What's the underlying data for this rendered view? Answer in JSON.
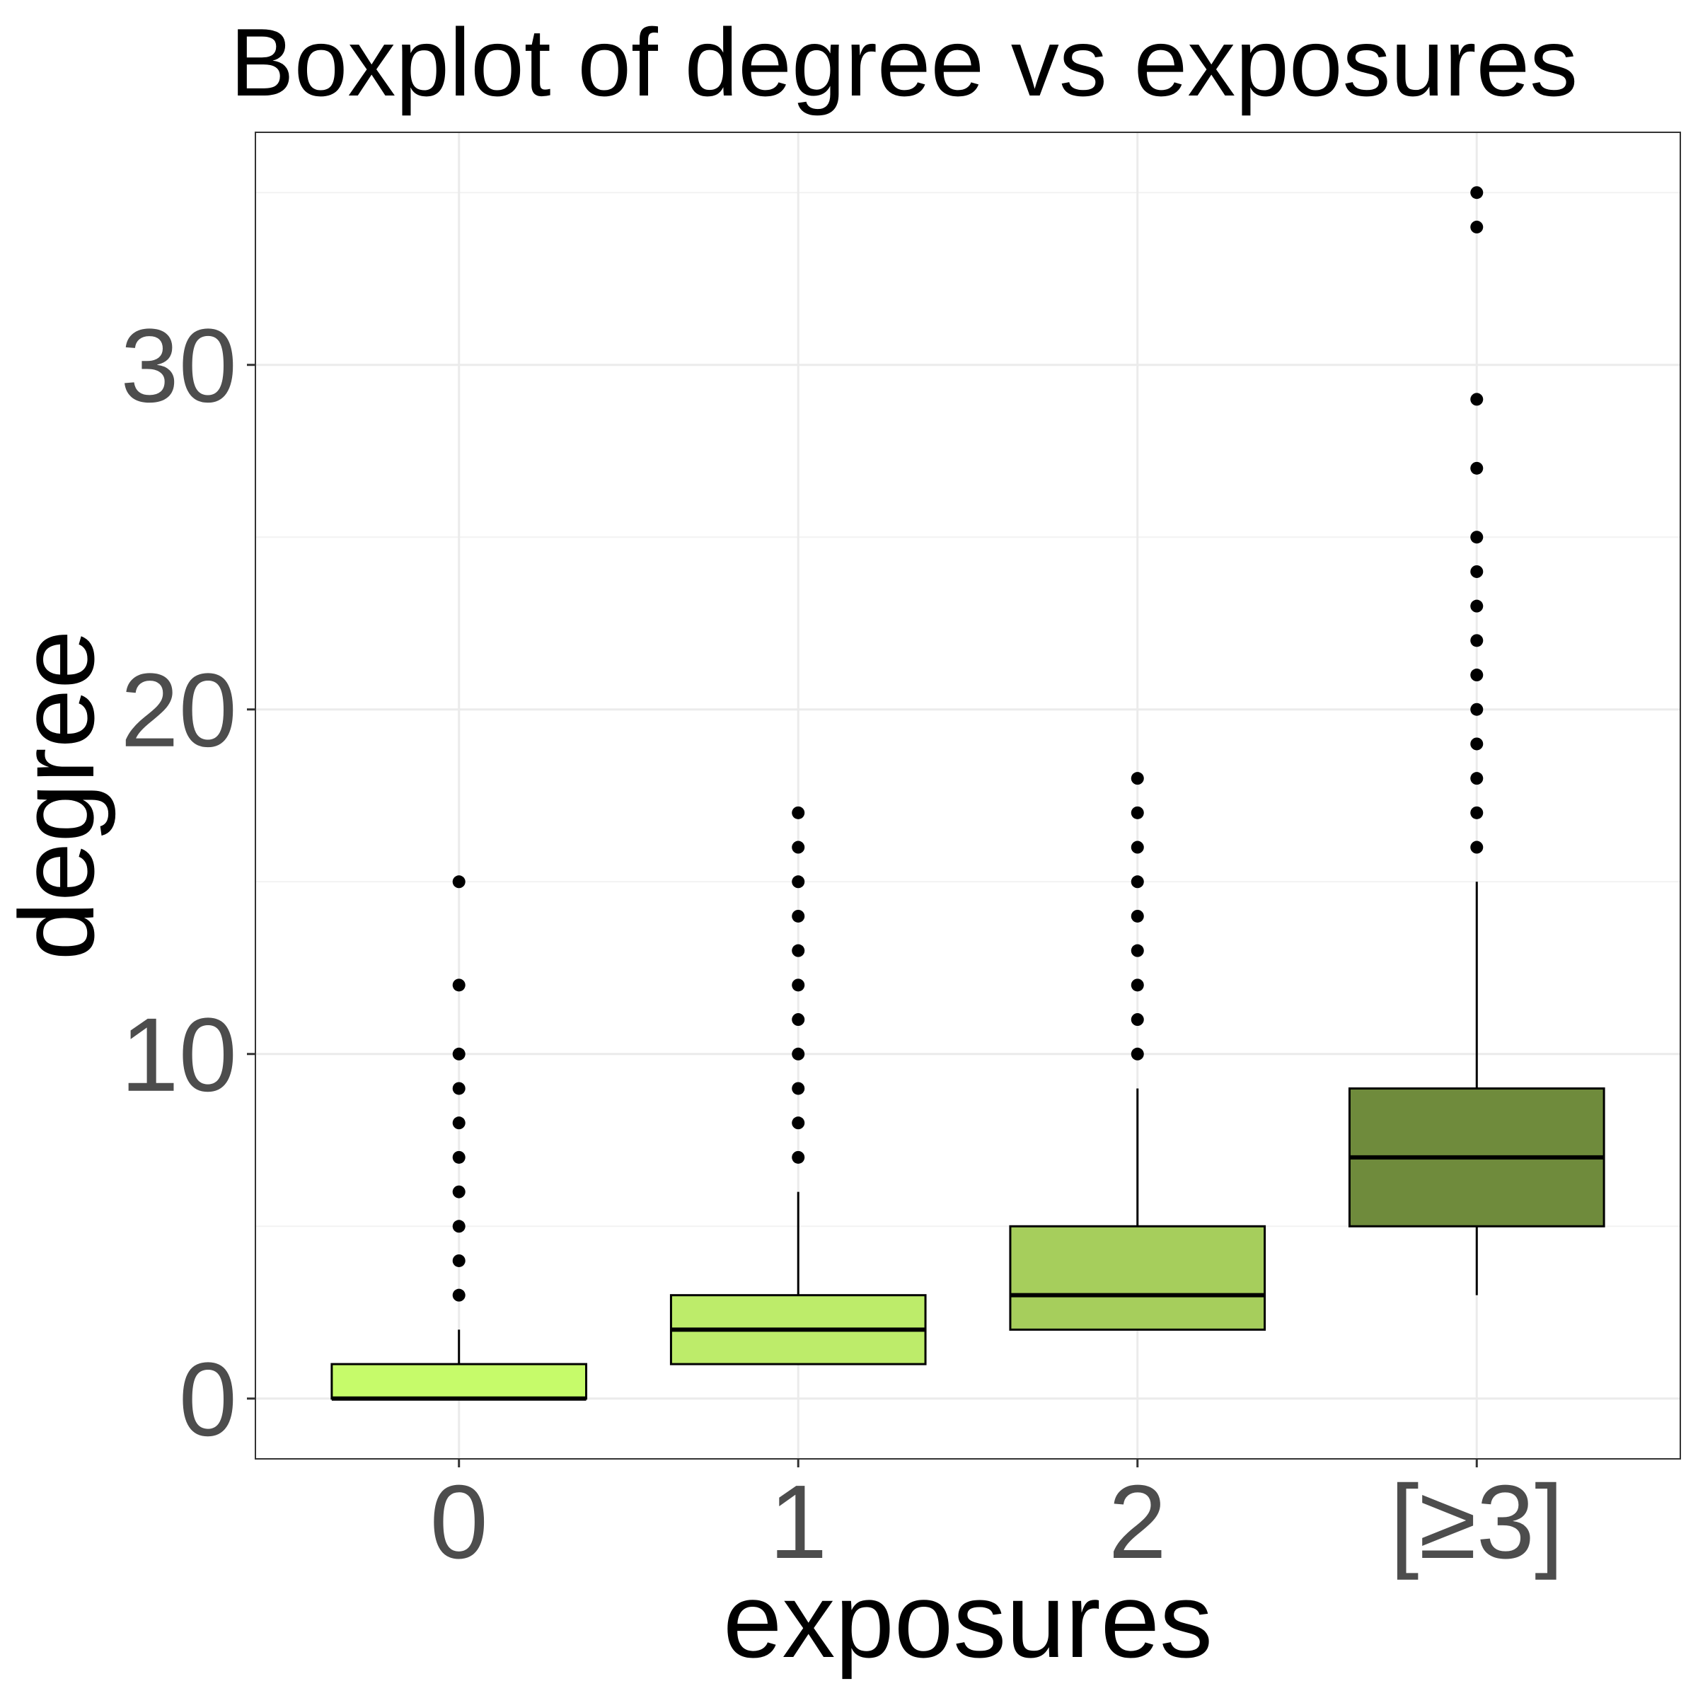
{
  "chart_data": {
    "type": "boxplot",
    "title": "Boxplot of degree vs exposures",
    "x_label": "exposures",
    "y_label": "degree",
    "categories": [
      "0",
      "1",
      "2",
      "[≥3]"
    ],
    "boxes": [
      {
        "color": "#c6fb6a",
        "whisker_low": 0,
        "q1": 0,
        "median": 0,
        "q3": 1,
        "whisker_high": 2,
        "outliers": [
          3,
          4,
          5,
          6,
          7,
          8,
          9,
          10,
          12,
          15
        ]
      },
      {
        "color": "#bdec6a",
        "whisker_low": 1,
        "q1": 1,
        "median": 2,
        "q3": 3,
        "whisker_high": 6,
        "outliers": [
          7,
          8,
          9,
          10,
          11,
          12,
          13,
          14,
          15,
          16,
          17
        ]
      },
      {
        "color": "#a6ce5c",
        "whisker_low": 2,
        "q1": 2,
        "median": 3,
        "q3": 5,
        "whisker_high": 9,
        "outliers": [
          10,
          11,
          12,
          13,
          14,
          15,
          16,
          17,
          18
        ]
      },
      {
        "color": "#6f8b3c",
        "whisker_low": 3,
        "q1": 5,
        "median": 7,
        "q3": 9,
        "whisker_high": 15,
        "outliers": [
          16,
          17,
          18,
          19,
          20,
          21,
          22,
          23,
          24,
          25,
          27,
          29,
          34,
          35
        ]
      }
    ],
    "ylim": [
      -1.75,
      36.75
    ],
    "yticks": [
      0,
      10,
      20,
      30
    ],
    "y_minor_grid": [
      5,
      15,
      25,
      35
    ],
    "grid": true
  }
}
